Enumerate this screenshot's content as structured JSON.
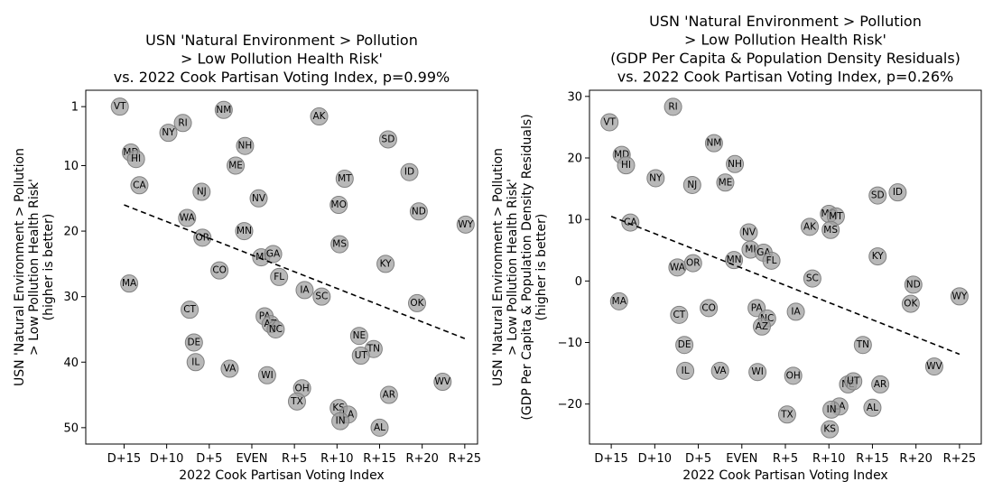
{
  "chart_data": [
    {
      "type": "scatter",
      "title": [
        "USN 'Natural Environment > Pollution",
        "> Low Pollution Health Risk'",
        "vs. 2022 Cook Partisan Voting Index, p=0.99%"
      ],
      "xlabel": "2022 Cook Partisan Voting Index",
      "ylabel": [
        "USN 'Natural Environment > Pollution",
        "> Low Pollution Health Risk'",
        "(higher is better)"
      ],
      "xlim": [
        -19.5,
        26.5
      ],
      "ylim": [
        52.5,
        -1.5
      ],
      "y_inverted": true,
      "xticks": [
        -15,
        -10,
        -5,
        0,
        5,
        10,
        15,
        20,
        25
      ],
      "xtick_labels": [
        "D+15",
        "D+10",
        "D+5",
        "EVEN",
        "R+5",
        "R+10",
        "R+15",
        "R+20",
        "R+25"
      ],
      "yticks": [
        1,
        10,
        20,
        30,
        40,
        50
      ],
      "ytick_labels": [
        "1",
        "10",
        "20",
        "30",
        "40",
        "50"
      ],
      "trendline": {
        "x": [
          -15,
          25
        ],
        "y": [
          16,
          36.4
        ]
      },
      "points": [
        {
          "label": "VT",
          "x": -15.5,
          "y": 1
        },
        {
          "label": "MD",
          "x": -14.2,
          "y": 8
        },
        {
          "label": "HI",
          "x": -13.6,
          "y": 9
        },
        {
          "label": "CA",
          "x": -13.2,
          "y": 13
        },
        {
          "label": "MA",
          "x": -14.4,
          "y": 28
        },
        {
          "label": "NY",
          "x": -9.8,
          "y": 5
        },
        {
          "label": "RI",
          "x": -8.1,
          "y": 3.5
        },
        {
          "label": "NM",
          "x": -3.3,
          "y": 1.5
        },
        {
          "label": "NH",
          "x": -0.8,
          "y": 7
        },
        {
          "label": "ME",
          "x": -1.9,
          "y": 10
        },
        {
          "label": "NJ",
          "x": -5.9,
          "y": 14
        },
        {
          "label": "WA",
          "x": -7.6,
          "y": 18
        },
        {
          "label": "OR",
          "x": -5.8,
          "y": 21
        },
        {
          "label": "NV",
          "x": 0.8,
          "y": 15
        },
        {
          "label": "MN",
          "x": -0.9,
          "y": 20
        },
        {
          "label": "CO",
          "x": -3.8,
          "y": 26
        },
        {
          "label": "MI",
          "x": 1.1,
          "y": 24
        },
        {
          "label": "GA",
          "x": 2.5,
          "y": 23.5
        },
        {
          "label": "FL",
          "x": 3.2,
          "y": 27
        },
        {
          "label": "CT",
          "x": -7.3,
          "y": 32
        },
        {
          "label": "DE",
          "x": -6.8,
          "y": 37
        },
        {
          "label": "IL",
          "x": -6.6,
          "y": 40
        },
        {
          "label": "VA",
          "x": -2.6,
          "y": 41
        },
        {
          "label": "PA",
          "x": 1.5,
          "y": 33
        },
        {
          "label": "AZ",
          "x": 2.2,
          "y": 34.2
        },
        {
          "label": "NC",
          "x": 2.8,
          "y": 35
        },
        {
          "label": "WI",
          "x": 1.8,
          "y": 42
        },
        {
          "label": "IA",
          "x": 6.2,
          "y": 29
        },
        {
          "label": "SC",
          "x": 8.2,
          "y": 30
        },
        {
          "label": "OH",
          "x": 5.9,
          "y": 44
        },
        {
          "label": "TX",
          "x": 5.3,
          "y": 46
        },
        {
          "label": "AK",
          "x": 7.9,
          "y": 2.5
        },
        {
          "label": "SD",
          "x": 16.0,
          "y": 6
        },
        {
          "label": "MT",
          "x": 10.9,
          "y": 12
        },
        {
          "label": "MO",
          "x": 10.2,
          "y": 16
        },
        {
          "label": "MS",
          "x": 10.3,
          "y": 22
        },
        {
          "label": "ID",
          "x": 18.5,
          "y": 11
        },
        {
          "label": "ND",
          "x": 19.6,
          "y": 17
        },
        {
          "label": "WY",
          "x": 25.1,
          "y": 19
        },
        {
          "label": "KY",
          "x": 15.7,
          "y": 25
        },
        {
          "label": "OK",
          "x": 19.4,
          "y": 31
        },
        {
          "label": "NE",
          "x": 12.6,
          "y": 36
        },
        {
          "label": "TN",
          "x": 14.3,
          "y": 38
        },
        {
          "label": "UT",
          "x": 12.8,
          "y": 39
        },
        {
          "label": "AR",
          "x": 16.1,
          "y": 45
        },
        {
          "label": "WV",
          "x": 22.4,
          "y": 43
        },
        {
          "label": "KS",
          "x": 10.2,
          "y": 47
        },
        {
          "label": "LA",
          "x": 11.3,
          "y": 48
        },
        {
          "label": "IN",
          "x": 10.4,
          "y": 49
        },
        {
          "label": "AL",
          "x": 15.0,
          "y": 50
        }
      ]
    },
    {
      "type": "scatter",
      "title": [
        "USN 'Natural Environment > Pollution",
        "> Low Pollution Health Risk'",
        "(GDP Per Capita & Population Density Residuals)",
        "vs. 2022 Cook Partisan Voting Index, p=0.26%"
      ],
      "xlabel": "2022 Cook Partisan Voting Index",
      "ylabel": [
        "USN 'Natural Environment > Pollution",
        "> Low Pollution Health Risk'",
        "(GDP Per Capita & Population Density Residuals)",
        "(higher is better)"
      ],
      "xlim": [
        -17.5,
        27.5
      ],
      "ylim": [
        -26.5,
        31.0
      ],
      "y_inverted": false,
      "xticks": [
        -15,
        -10,
        -5,
        0,
        5,
        10,
        15,
        20,
        25
      ],
      "xtick_labels": [
        "D+15",
        "D+10",
        "D+5",
        "EVEN",
        "R+5",
        "R+10",
        "R+15",
        "R+20",
        "R+25"
      ],
      "yticks": [
        -20,
        -10,
        0,
        10,
        20,
        30
      ],
      "ytick_labels": [
        "−20",
        "−10",
        "0",
        "10",
        "20",
        "30"
      ],
      "trendline": {
        "x": [
          -15,
          25
        ],
        "y": [
          10.5,
          -11.9
        ]
      },
      "points": [
        {
          "label": "VT",
          "x": -15.2,
          "y": 25.8
        },
        {
          "label": "MD",
          "x": -13.8,
          "y": 20.5
        },
        {
          "label": "HI",
          "x": -13.3,
          "y": 18.8
        },
        {
          "label": "CA",
          "x": -12.8,
          "y": 9.5
        },
        {
          "label": "MA",
          "x": -14.1,
          "y": -3.3
        },
        {
          "label": "NY",
          "x": -9.9,
          "y": 16.7
        },
        {
          "label": "RI",
          "x": -7.9,
          "y": 28.3
        },
        {
          "label": "NJ",
          "x": -5.7,
          "y": 15.6
        },
        {
          "label": "NM",
          "x": -3.2,
          "y": 22.4
        },
        {
          "label": "NH",
          "x": -0.8,
          "y": 19.0
        },
        {
          "label": "ME",
          "x": -1.9,
          "y": 16.0
        },
        {
          "label": "WA",
          "x": -7.4,
          "y": 2.2
        },
        {
          "label": "OR",
          "x": -5.6,
          "y": 2.9
        },
        {
          "label": "NV",
          "x": 0.8,
          "y": 7.9
        },
        {
          "label": "MI",
          "x": 1.0,
          "y": 5.1
        },
        {
          "label": "GA",
          "x": 2.5,
          "y": 4.6
        },
        {
          "label": "FL",
          "x": 3.4,
          "y": 3.3
        },
        {
          "label": "MN",
          "x": -0.9,
          "y": 3.4
        },
        {
          "label": "CT",
          "x": -7.2,
          "y": -5.5
        },
        {
          "label": "CO",
          "x": -3.8,
          "y": -4.4
        },
        {
          "label": "DE",
          "x": -6.6,
          "y": -10.4
        },
        {
          "label": "IL",
          "x": -6.5,
          "y": -14.6
        },
        {
          "label": "VA",
          "x": -2.5,
          "y": -14.6
        },
        {
          "label": "PA",
          "x": 1.7,
          "y": -4.4
        },
        {
          "label": "NC",
          "x": 2.9,
          "y": -6.1
        },
        {
          "label": "AZ",
          "x": 2.3,
          "y": -7.4
        },
        {
          "label": "WI",
          "x": 1.8,
          "y": -14.8
        },
        {
          "label": "IA",
          "x": 6.2,
          "y": -5.0
        },
        {
          "label": "SC",
          "x": 8.1,
          "y": 0.4
        },
        {
          "label": "AK",
          "x": 7.8,
          "y": 8.8
        },
        {
          "label": "OH",
          "x": 5.9,
          "y": -15.4
        },
        {
          "label": "TX",
          "x": 5.2,
          "y": -21.7
        },
        {
          "label": "MO",
          "x": 10.0,
          "y": 10.9
        },
        {
          "label": "MT",
          "x": 10.8,
          "y": 10.5
        },
        {
          "label": "MS",
          "x": 10.2,
          "y": 8.3
        },
        {
          "label": "SD",
          "x": 15.6,
          "y": 13.9
        },
        {
          "label": "ID",
          "x": 17.9,
          "y": 14.4
        },
        {
          "label": "KY",
          "x": 15.6,
          "y": 4.0
        },
        {
          "label": "ND",
          "x": 19.7,
          "y": -0.6
        },
        {
          "label": "OK",
          "x": 19.4,
          "y": -3.7
        },
        {
          "label": "WY",
          "x": 25.0,
          "y": -2.5
        },
        {
          "label": "TN",
          "x": 13.9,
          "y": -10.4
        },
        {
          "label": "NE",
          "x": 12.2,
          "y": -16.8
        },
        {
          "label": "UT",
          "x": 12.8,
          "y": -16.3
        },
        {
          "label": "AR",
          "x": 15.9,
          "y": -16.8
        },
        {
          "label": "WV",
          "x": 22.1,
          "y": -13.9
        },
        {
          "label": "LA",
          "x": 11.2,
          "y": -20.4
        },
        {
          "label": "AL",
          "x": 15.0,
          "y": -20.6
        },
        {
          "label": "IN",
          "x": 10.3,
          "y": -20.9
        },
        {
          "label": "KS",
          "x": 10.1,
          "y": -24.1
        }
      ]
    }
  ]
}
